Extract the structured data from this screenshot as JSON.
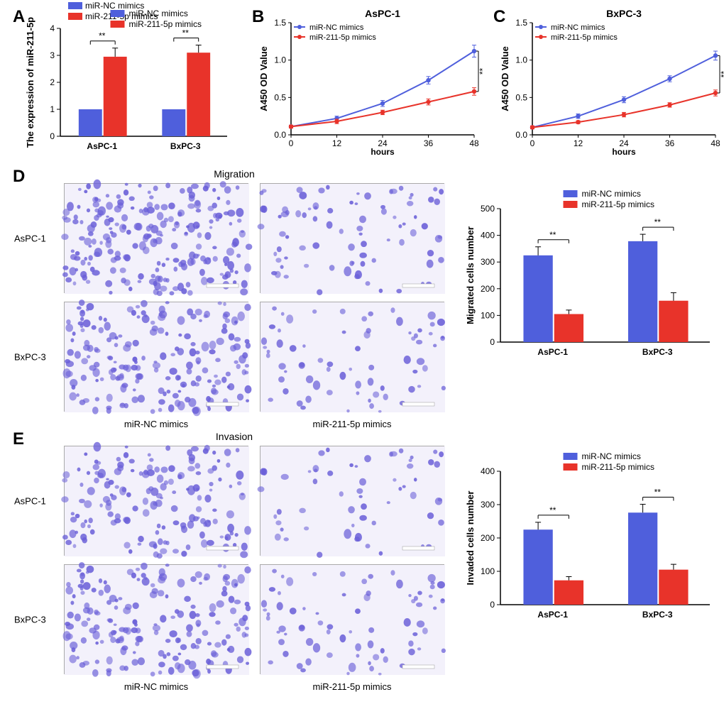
{
  "colors": {
    "blue": "#4f5fdc",
    "red": "#e8332a",
    "axis": "#000000",
    "micro_tint": "#6a5fd8"
  },
  "panelA": {
    "letter": "A",
    "ylabel": "The expression of miR-211-5p",
    "legend": [
      "miR-NC mimics",
      "miR-211-5p mimics"
    ],
    "cats": [
      "AsPC-1",
      "BxPC-3"
    ],
    "vals_nc": [
      1.0,
      1.0
    ],
    "vals_mir": [
      2.95,
      3.1
    ],
    "err_nc": [
      0.0,
      0.0
    ],
    "err_mir": [
      0.32,
      0.28
    ],
    "ymax": 4,
    "ytick": 1,
    "sig": "**"
  },
  "panelB": {
    "letter": "B",
    "title": "AsPC-1",
    "xlabel": "hours",
    "ylabel": "A450 OD Value",
    "x": [
      0,
      12,
      24,
      36,
      48
    ],
    "nc": [
      0.11,
      0.22,
      0.42,
      0.73,
      1.12
    ],
    "nc_err": [
      0.02,
      0.03,
      0.04,
      0.05,
      0.08
    ],
    "mir": [
      0.11,
      0.18,
      0.3,
      0.44,
      0.58
    ],
    "mir_err": [
      0.02,
      0.03,
      0.03,
      0.04,
      0.05
    ],
    "ymax": 1.5,
    "ytick": 0.5,
    "sig": "**",
    "legend": [
      "miR-NC mimics",
      "miR-211-5p mimics"
    ]
  },
  "panelC": {
    "letter": "C",
    "title": "BxPC-3",
    "xlabel": "hours",
    "ylabel": "A450 OD Value",
    "x": [
      0,
      12,
      24,
      36,
      48
    ],
    "nc": [
      0.1,
      0.25,
      0.47,
      0.75,
      1.06
    ],
    "nc_err": [
      0.02,
      0.03,
      0.04,
      0.04,
      0.06
    ],
    "mir": [
      0.1,
      0.17,
      0.27,
      0.4,
      0.56
    ],
    "mir_err": [
      0.02,
      0.02,
      0.03,
      0.03,
      0.04
    ],
    "ymax": 1.5,
    "ytick": 0.5,
    "sig": "**",
    "legend": [
      "miR-NC mimics",
      "miR-211-5p mimics"
    ]
  },
  "panelD": {
    "letter": "D",
    "title": "Migration",
    "rows": [
      "AsPC-1",
      "BxPC-3"
    ],
    "cols": [
      "miR-NC mimics",
      "miR-211-5p mimics"
    ],
    "density": {
      "AsPC-1": [
        0.55,
        0.2
      ],
      "BxPC-3": [
        0.48,
        0.17
      ]
    },
    "chart": {
      "ylabel": "Migrated cells number",
      "ymax": 500,
      "ytick": 100,
      "legend": [
        "miR-NC mimics",
        "miR-211-5p mimics"
      ],
      "cats": [
        "AsPC-1",
        "BxPC-3"
      ],
      "vals_nc": [
        325,
        378
      ],
      "vals_mir": [
        105,
        155
      ],
      "err_nc": [
        32,
        26
      ],
      "err_mir": [
        15,
        30
      ],
      "sig": "**"
    }
  },
  "panelE": {
    "letter": "E",
    "title": "Invasion",
    "rows": [
      "AsPC-1",
      "BxPC-3"
    ],
    "cols": [
      "miR-NC mimics",
      "miR-211-5p mimics"
    ],
    "density": {
      "AsPC-1": [
        0.4,
        0.14
      ],
      "BxPC-3": [
        0.46,
        0.18
      ]
    },
    "chart": {
      "ylabel": "Invaded cells number",
      "ymax": 400,
      "ytick": 100,
      "legend": [
        "miR-NC mimics",
        "miR-211-5p mimics"
      ],
      "cats": [
        "AsPC-1",
        "BxPC-3"
      ],
      "vals_nc": [
        225,
        276
      ],
      "vals_mir": [
        73,
        105
      ],
      "err_nc": [
        22,
        25
      ],
      "err_mir": [
        11,
        16
      ],
      "sig": "**"
    }
  }
}
